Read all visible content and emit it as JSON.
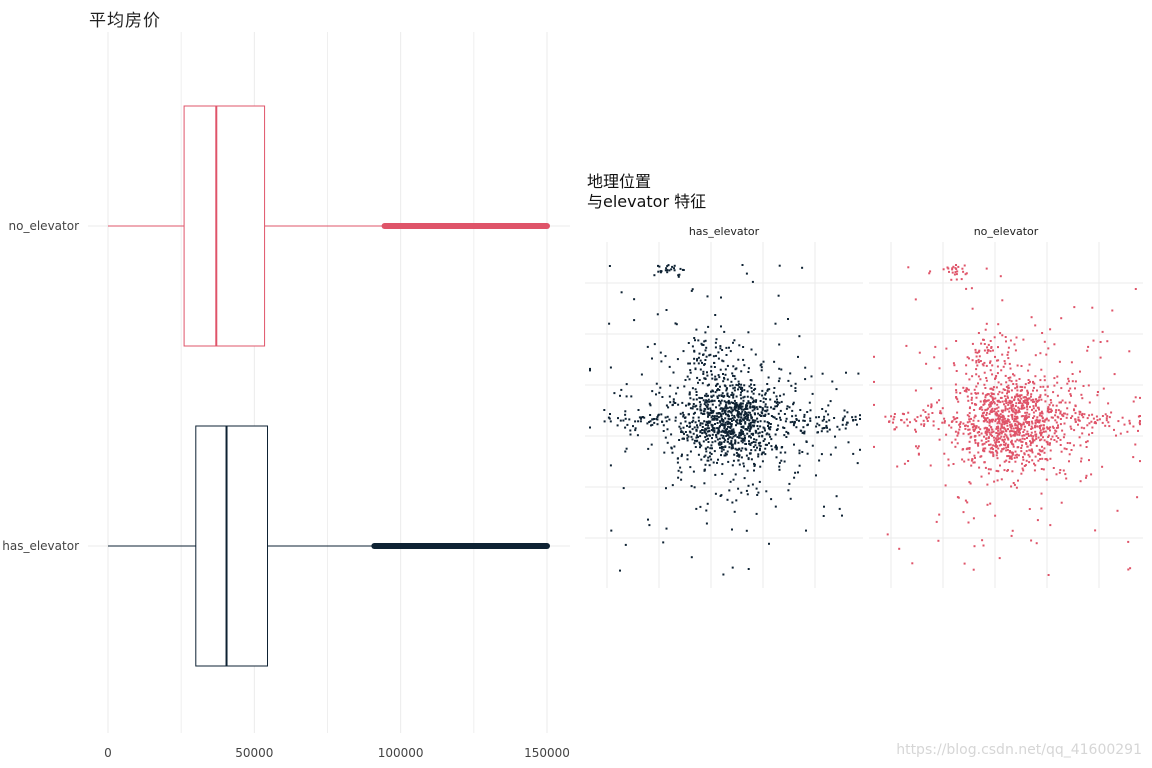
{
  "title_left": "平均房价",
  "title_right": {
    "line1": "地理位置",
    "line2": "与elevator 特征"
  },
  "facets": [
    "has_elevator",
    "no_elevator"
  ],
  "watermark": "https://blog.csdn.net/qq_41600291",
  "colors": {
    "has_elevator": "#0e2233",
    "no_elevator": "#df5469",
    "grid": "#ebebeb",
    "axis_text": "#444444"
  },
  "chart_data": [
    {
      "type": "boxplot",
      "title": "平均房价",
      "orientation": "horizontal",
      "categories": [
        "no_elevator",
        "has_elevator"
      ],
      "xlim": [
        0,
        150000
      ],
      "x_ticks": [
        0,
        50000,
        100000,
        150000
      ],
      "x_tick_labels": [
        "0",
        "50000",
        "100000",
        "150000"
      ],
      "grid": true,
      "boxes": [
        {
          "name": "no_elevator",
          "min": 0,
          "q1": 26000,
          "median": 37000,
          "q3": 53500,
          "whisker_high": 94500,
          "outliers_from": 94500,
          "outliers_to": 150000,
          "color": "#df5469"
        },
        {
          "name": "has_elevator",
          "min": 0,
          "q1": 30000,
          "median": 40500,
          "q3": 54500,
          "whisker_high": 91000,
          "outliers_from": 91000,
          "outliers_to": 150000,
          "color": "#0e2233"
        }
      ]
    },
    {
      "type": "scatter",
      "title": "地理位置 与elevator 特征",
      "facets": [
        "has_elevator",
        "no_elevator"
      ],
      "grid": true,
      "axes_labels_shown": false,
      "note": "point cloud of house locations, concentrated at center"
    }
  ]
}
